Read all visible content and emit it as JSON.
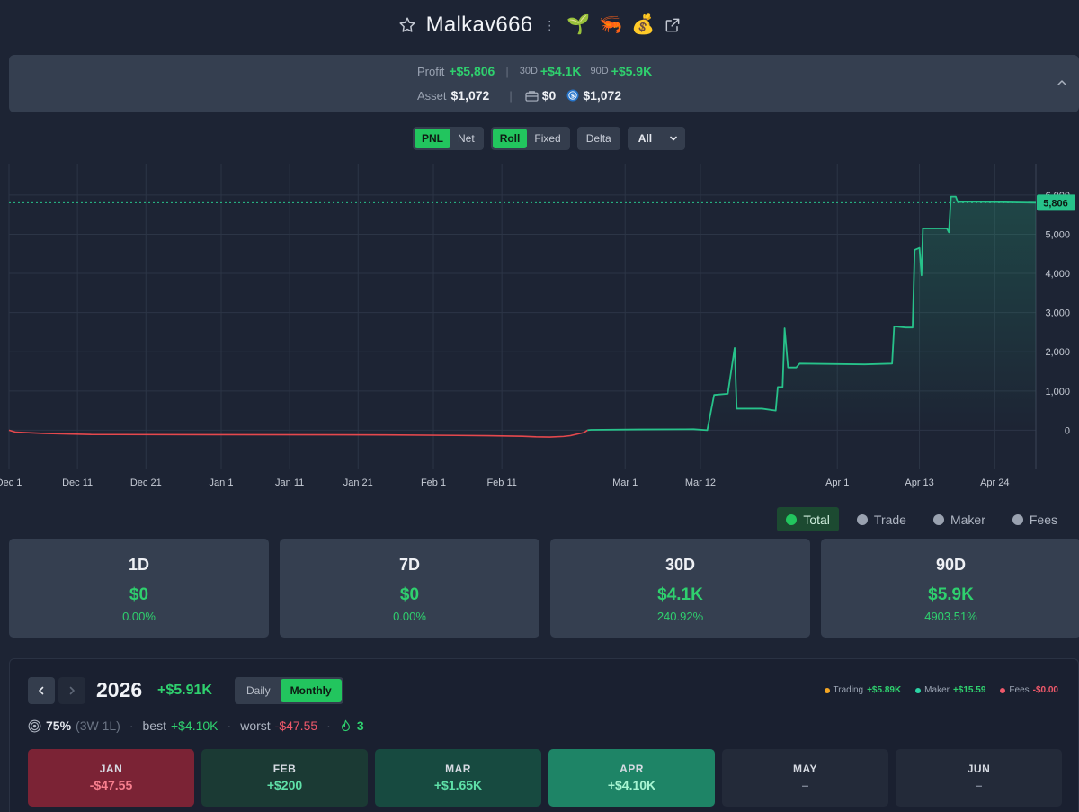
{
  "header": {
    "username": "Malkav666",
    "badges": [
      "🌱",
      "🦐",
      "💰"
    ],
    "icons": {
      "favorite": "star-icon",
      "menu": "kebab-icon",
      "open": "external-link-icon"
    }
  },
  "summary": {
    "profit_label": "Profit",
    "profit_value": "+$5,806",
    "d30_label": "30D",
    "d30_value": "+$4.1K",
    "d90_label": "90D",
    "d90_value": "+$5.9K",
    "asset_label": "Asset",
    "asset_value": "$1,072",
    "wallet_value": "$0",
    "usdc_value": "$1,072"
  },
  "controls": {
    "pnl": "PNL",
    "net": "Net",
    "roll": "Roll",
    "fixed": "Fixed",
    "delta": "Delta",
    "range": "All"
  },
  "chart_data": {
    "type": "line",
    "x_labels": [
      "Dec 1",
      "Dec 11",
      "Dec 21",
      "Jan 1",
      "Jan 11",
      "Jan 21",
      "Feb 1",
      "Feb 11",
      "Mar 1",
      "Mar 12",
      "Apr 1",
      "Apr 13",
      "Apr 24"
    ],
    "y_ticks": [
      "0",
      "1,000",
      "2,000",
      "3,000",
      "4,000",
      "5,000",
      "6,000"
    ],
    "ylim": [
      -1000,
      6800
    ],
    "current_value_label": "5,806",
    "current_value": 5806,
    "grid": true,
    "series": [
      {
        "values": [
          [
            0,
            0
          ],
          [
            1,
            -50
          ],
          [
            5,
            -80
          ],
          [
            12,
            -110
          ],
          [
            30,
            -115
          ],
          [
            55,
            -120
          ],
          [
            70,
            -140
          ],
          [
            75,
            -155
          ],
          [
            77,
            -170
          ],
          [
            79,
            -175
          ],
          [
            81,
            -160
          ],
          [
            82,
            -140
          ],
          [
            83,
            -100
          ],
          [
            84,
            -60
          ],
          [
            84.5,
            0
          ],
          [
            85,
            10
          ],
          [
            92,
            20
          ],
          [
            100,
            25
          ],
          [
            102,
            0
          ],
          [
            103,
            900
          ],
          [
            105,
            930
          ],
          [
            106,
            2100
          ],
          [
            106.3,
            550
          ],
          [
            110,
            550
          ],
          [
            112,
            500
          ],
          [
            112.3,
            1100
          ],
          [
            113,
            1100
          ],
          [
            113.3,
            2600
          ],
          [
            113.8,
            1600
          ],
          [
            115,
            1600
          ],
          [
            115.5,
            1700
          ],
          [
            125,
            1680
          ],
          [
            129,
            1700
          ],
          [
            129.3,
            2650
          ],
          [
            131,
            2620
          ],
          [
            132,
            2620
          ],
          [
            132.3,
            4600
          ],
          [
            133,
            4650
          ],
          [
            133.3,
            3950
          ],
          [
            133.5,
            5150
          ],
          [
            137,
            5150
          ],
          [
            137.3,
            5050
          ],
          [
            137.6,
            5960
          ],
          [
            138.3,
            5960
          ],
          [
            138.6,
            5820
          ],
          [
            140,
            5830
          ],
          [
            150,
            5806
          ]
        ],
        "color_negative": "#e5484d",
        "color_positive": "#27c28a"
      }
    ]
  },
  "legend": [
    {
      "label": "Total",
      "active": true
    },
    {
      "label": "Trade",
      "active": false
    },
    {
      "label": "Maker",
      "active": false
    },
    {
      "label": "Fees",
      "active": false
    }
  ],
  "cards": [
    {
      "period": "1D",
      "value": "$0",
      "pct": "0.00%"
    },
    {
      "period": "7D",
      "value": "$0",
      "pct": "0.00%"
    },
    {
      "period": "30D",
      "value": "$4.1K",
      "pct": "240.92%"
    },
    {
      "period": "90D",
      "value": "$5.9K",
      "pct": "4903.51%"
    }
  ],
  "calendar": {
    "year": "2026",
    "total": "+$5.91K",
    "daily": "Daily",
    "monthly": "Monthly",
    "breakdown": {
      "trading_label": "Trading",
      "trading_value": "+$5.89K",
      "trading_color": "#f5a623",
      "maker_label": "Maker",
      "maker_value": "+$15.59",
      "maker_color": "#2bd4a4",
      "fees_label": "Fees",
      "fees_value": "-$0.00",
      "fees_color": "#f0596b"
    },
    "stats": {
      "winrate": "75%",
      "record": "(3W 1L)",
      "best_label": "best",
      "best_value": "+$4.10K",
      "worst_label": "worst",
      "worst_value": "-$47.55",
      "streak": "3"
    },
    "months": [
      {
        "name": "JAN",
        "value": "-$47.55",
        "bg": "#7b2335",
        "fg": "#f77f8e"
      },
      {
        "name": "FEB",
        "value": "+$200",
        "bg": "#1b3a34",
        "fg": "#5fe0a8"
      },
      {
        "name": "MAR",
        "value": "+$1.65K",
        "bg": "#174a40",
        "fg": "#5fe0a8"
      },
      {
        "name": "APR",
        "value": "+$4.10K",
        "bg": "#1e8466",
        "fg": "#a7f5d2"
      },
      {
        "name": "MAY",
        "value": "–",
        "bg": "#232a39",
        "fg": "#7c8494"
      },
      {
        "name": "JUN",
        "value": "–",
        "bg": "#232a39",
        "fg": "#7c8494"
      }
    ]
  }
}
